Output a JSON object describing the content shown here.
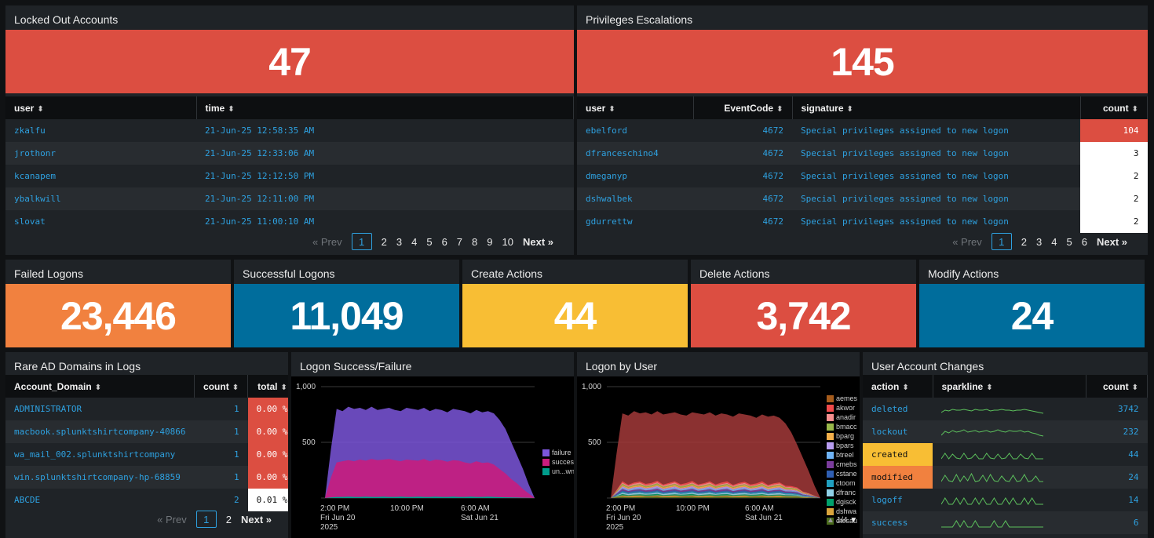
{
  "locked": {
    "title": "Locked Out Accounts",
    "value": "47",
    "columns": [
      "user",
      "time"
    ],
    "rows": [
      [
        "zkalfu",
        "21-Jun-25 12:58:35 AM"
      ],
      [
        "jrothonr",
        "21-Jun-25 12:33:06 AM"
      ],
      [
        "kcanapem",
        "21-Jun-25 12:12:50 PM"
      ],
      [
        "ybalkwill",
        "21-Jun-25 12:11:00 PM"
      ],
      [
        "slovat",
        "21-Jun-25 11:00:10 AM"
      ]
    ],
    "pager": {
      "prev": "« Prev",
      "pages": [
        "1",
        "2",
        "3",
        "4",
        "5",
        "6",
        "7",
        "8",
        "9",
        "10"
      ],
      "next": "Next »"
    }
  },
  "priv": {
    "title": "Privileges Escalations",
    "value": "145",
    "columns": [
      "user",
      "EventCode",
      "signature",
      "count"
    ],
    "rows": [
      [
        "ebelford",
        "4672",
        "Special privileges assigned to new logon",
        "104"
      ],
      [
        "dfranceschino4",
        "4672",
        "Special privileges assigned to new logon",
        "3"
      ],
      [
        "dmeganyp",
        "4672",
        "Special privileges assigned to new logon",
        "2"
      ],
      [
        "dshwalbek",
        "4672",
        "Special privileges assigned to new logon",
        "2"
      ],
      [
        "gdurrettw",
        "4672",
        "Special privileges assigned to new logon",
        "2"
      ]
    ],
    "pager": {
      "prev": "« Prev",
      "pages": [
        "1",
        "2",
        "3",
        "4",
        "5",
        "6"
      ],
      "next": "Next »"
    }
  },
  "kpis": [
    {
      "title": "Failed Logons",
      "value": "23,446",
      "color": "#f1813f"
    },
    {
      "title": "Successful Logons",
      "value": "11,049",
      "color": "#006d9c"
    },
    {
      "title": "Create Actions",
      "value": "44",
      "color": "#f8be34"
    },
    {
      "title": "Delete Actions",
      "value": "3,742",
      "color": "#dc4e41"
    },
    {
      "title": "Modify Actions",
      "value": "24",
      "color": "#006d9c"
    }
  ],
  "domains": {
    "title": "Rare AD Domains in Logs",
    "columns": [
      "Account_Domain",
      "count",
      "total"
    ],
    "rows": [
      [
        "ADMINISTRATOR",
        "1",
        "0.00 %"
      ],
      [
        "macbook.splunktshirtcompany-40866",
        "1",
        "0.00 %"
      ],
      [
        "wa_mail_002.splunktshirtcompany",
        "1",
        "0.00 %"
      ],
      [
        "win.splunktshirtcompany-hp-68859",
        "1",
        "0.00 %"
      ],
      [
        "ABCDE",
        "2",
        "0.01 %"
      ]
    ],
    "pager": {
      "prev": "« Prev",
      "pages": [
        "1",
        "2"
      ],
      "next": "Next »"
    }
  },
  "logon_sf": {
    "title": "Logon Success/Failure",
    "yticks": [
      "1,000",
      "500"
    ],
    "xticks": [
      [
        "2:00 PM",
        "Fri Jun 20",
        "2025"
      ],
      [
        "10:00 PM",
        "",
        ""
      ],
      [
        "6:00 AM",
        "Sat Jun 21",
        ""
      ]
    ],
    "legend": [
      {
        "name": "failure",
        "color": "#7b56db"
      },
      {
        "name": "success",
        "color": "#c81d7e"
      },
      {
        "name": "un...wn",
        "color": "#009c8b"
      }
    ]
  },
  "chart_data": [
    {
      "type": "area",
      "title": "Logon Success/Failure",
      "ylim": [
        0,
        1000
      ],
      "series": [
        {
          "name": "failure",
          "values": [
            0,
            430,
            800,
            780,
            820,
            800,
            810,
            790,
            820,
            790,
            800,
            810,
            790,
            780,
            810,
            800,
            790,
            810,
            780,
            800,
            790,
            770,
            800,
            790,
            780,
            760,
            790,
            770,
            780,
            760,
            700,
            620,
            500,
            380,
            260,
            120,
            0
          ]
        },
        {
          "name": "success",
          "values": [
            0,
            180,
            320,
            330,
            340,
            330,
            345,
            335,
            350,
            340,
            345,
            350,
            340,
            330,
            345,
            340,
            335,
            350,
            330,
            345,
            340,
            325,
            340,
            335,
            320,
            310,
            330,
            315,
            320,
            300,
            260,
            220,
            170,
            130,
            80,
            40,
            0
          ]
        },
        {
          "name": "un...wn",
          "values": [
            0,
            5,
            10,
            10,
            12,
            10,
            10,
            12,
            10,
            10,
            12,
            10,
            10,
            12,
            10,
            10,
            12,
            10,
            10,
            12,
            10,
            10,
            12,
            10,
            10,
            12,
            10,
            10,
            12,
            10,
            8,
            6,
            5,
            4,
            3,
            2,
            0
          ]
        }
      ]
    },
    {
      "type": "area",
      "title": "Logon by User",
      "ylim": [
        0,
        1000
      ],
      "total": [
        0,
        400,
        760,
        740,
        780,
        760,
        770,
        750,
        780,
        750,
        760,
        770,
        750,
        740,
        770,
        760,
        750,
        770,
        740,
        760,
        750,
        730,
        760,
        750,
        740,
        720,
        750,
        730,
        740,
        720,
        670,
        590,
        480,
        360,
        240,
        110,
        0
      ]
    }
  ],
  "logon_user": {
    "title": "Logon by User",
    "yticks": [
      "1,000",
      "500"
    ],
    "xticks": [
      [
        "2:00 PM",
        "Fri Jun 20",
        "2025"
      ],
      [
        "10:00 PM",
        "",
        ""
      ],
      [
        "6:00 AM",
        "Sat Jun 21",
        ""
      ]
    ],
    "legend": [
      {
        "name": "aemes",
        "color": "#a65c1c"
      },
      {
        "name": "akwor",
        "color": "#f04a4a"
      },
      {
        "name": "anadir",
        "color": "#f58f8f"
      },
      {
        "name": "bmacc",
        "color": "#9ab84a"
      },
      {
        "name": "bparg",
        "color": "#f5b04a"
      },
      {
        "name": "bpars",
        "color": "#b79cf0"
      },
      {
        "name": "btreel",
        "color": "#6fb3f5"
      },
      {
        "name": "cmebs",
        "color": "#7a3c9c"
      },
      {
        "name": "cstane",
        "color": "#2f5fb3"
      },
      {
        "name": "ctoom",
        "color": "#1f9fc0"
      },
      {
        "name": "dfranc",
        "color": "#8fd1e8"
      },
      {
        "name": "dgisck",
        "color": "#00a06b"
      },
      {
        "name": "dshwa",
        "color": "#d9a43c"
      },
      {
        "name": "dtesau",
        "color": "#4a6b1c"
      }
    ],
    "legend_page": "1/4"
  },
  "uac": {
    "title": "User Account Changes",
    "columns": [
      "action",
      "sparkline",
      "count"
    ],
    "rows": [
      {
        "action": "deleted",
        "count": "3742",
        "hl": ""
      },
      {
        "action": "lockout",
        "count": "232",
        "hl": ""
      },
      {
        "action": "created",
        "count": "44",
        "hl": "#f8be34"
      },
      {
        "action": "modified",
        "count": "24",
        "hl": "#f1813f"
      },
      {
        "action": "logoff",
        "count": "14",
        "hl": ""
      },
      {
        "action": "success",
        "count": "6",
        "hl": ""
      }
    ]
  },
  "colors": {
    "red": "#dc4e41",
    "link": "#2ea1e0",
    "header": "#0d0f11"
  }
}
